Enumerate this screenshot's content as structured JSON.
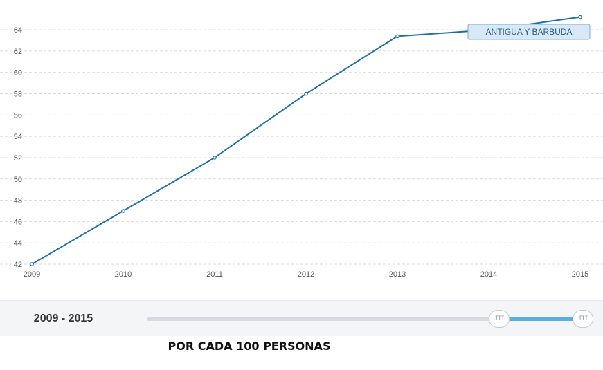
{
  "chart_data": {
    "type": "line",
    "x": [
      2009,
      2010,
      2011,
      2012,
      2013,
      2014,
      2015
    ],
    "series": [
      {
        "name": "ANTIGUA Y BARBUDA",
        "values": [
          42,
          47,
          52,
          58,
          63.4,
          64,
          65.2
        ]
      }
    ],
    "yticks": [
      42,
      44,
      46,
      48,
      50,
      52,
      54,
      56,
      58,
      60,
      62,
      64
    ],
    "xticks": [
      "2009",
      "2010",
      "2011",
      "2012",
      "2013",
      "2014",
      "2015"
    ],
    "ylim": [
      42,
      65.5
    ],
    "xlim": [
      2009,
      2015
    ],
    "grid": true,
    "line_color": "#1f6faa"
  },
  "tooltip": {
    "label": "ANTIGUA Y BARBUDA"
  },
  "range": {
    "label": "2009 - 2015",
    "min": 2009,
    "max": 2015,
    "selected_start": 2013.85,
    "selected_end": 2015,
    "handle_glyph": "III"
  },
  "footer": {
    "note": "POR CADA 100 PERSONAS"
  }
}
